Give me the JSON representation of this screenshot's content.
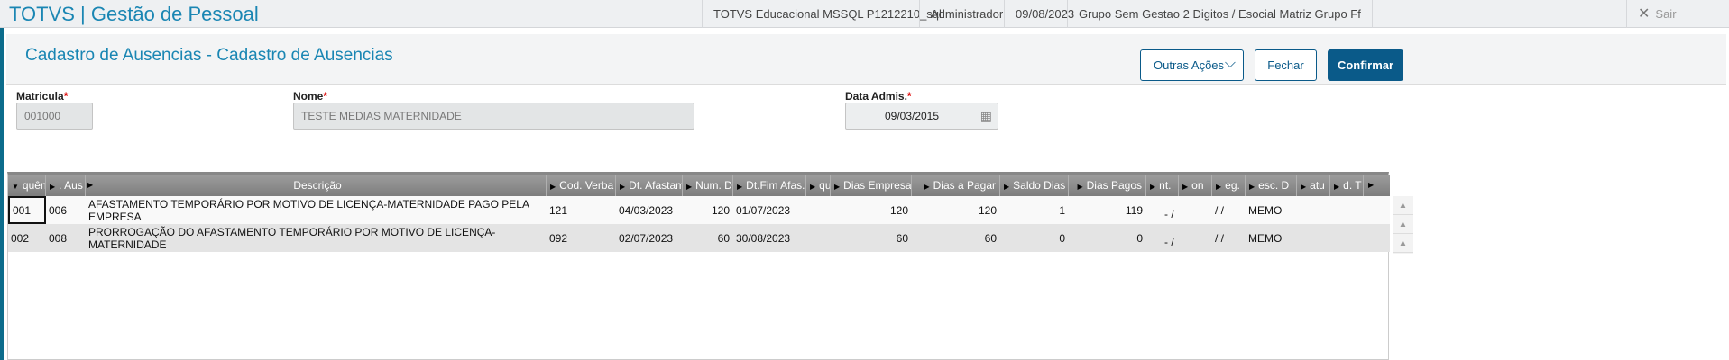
{
  "topbar": {
    "brand": "TOTVS | Gestão de Pessoal",
    "environment": "TOTVS Educacional MSSQL P1212210_sql",
    "user": "Administrador",
    "date": "09/08/2023",
    "company": "Grupo Sem Gestao 2 Digitos / Esocial Matriz Grupo Ff",
    "exit_label": "Sair"
  },
  "page": {
    "title": "Cadastro de Ausencias - Cadastro de Ausencias",
    "other_actions": "Outras Ações",
    "close": "Fechar",
    "confirm": "Confirmar"
  },
  "form": {
    "matricula_label": "Matricula",
    "matricula": "001000",
    "nome_label": "Nome",
    "nome": "TESTE MEDIAS MATERNIDADE",
    "admis_label": "Data Admis.",
    "admis": "09/03/2015",
    "required": "*"
  },
  "grid": {
    "columns": [
      "quên",
      ". Aus",
      "Descrição",
      "Cod. Verba",
      "Dt. Afastam",
      "Num. Dia",
      "Dt.Fim Afas.",
      "qu",
      "Dias Empresa",
      "Dias a Pagar",
      "Saldo Dias",
      "Dias Pagos",
      "nt.",
      "on",
      "eg.",
      "esc. D",
      "atu",
      "d. T"
    ],
    "rows": [
      [
        "001",
        "006",
        "AFASTAMENTO TEMPORÁRIO POR MOTIVO DE LICENÇA-MATERNIDADE PAGO PELA EMPRESA",
        "121",
        "04/03/2023",
        "120",
        "01/07/2023",
        "",
        "120",
        "120",
        "1",
        "119",
        "- /",
        "",
        "/  /",
        "MEMO",
        "",
        ""
      ],
      [
        "002",
        "008",
        "PRORROGAÇÃO DO AFASTAMENTO TEMPORÁRIO POR MOTIVO DE LICENÇA-MATERNIDADE",
        "092",
        "02/07/2023",
        "60",
        "30/08/2023",
        "",
        "60",
        "60",
        "0",
        "0",
        "- /",
        "",
        "/  /",
        "MEMO",
        "",
        ""
      ]
    ]
  },
  "colors": {
    "brand": "#1a86b3",
    "primary": "#0a5a89"
  }
}
